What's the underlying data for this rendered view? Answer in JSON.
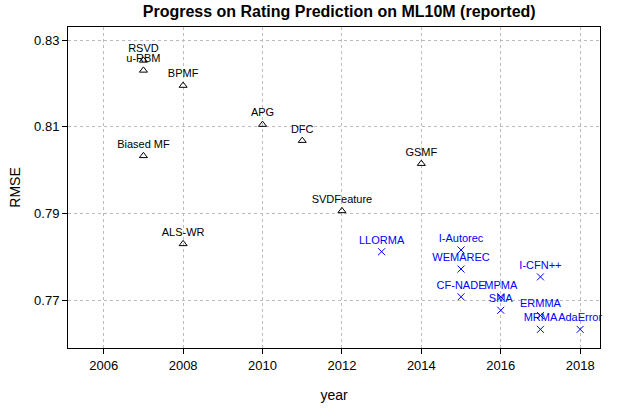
{
  "chart_data": {
    "type": "scatter",
    "title": "Progress on Rating Prediction on ML10M (reported)",
    "x_label": "year",
    "y_label": "RMSE",
    "xlim": [
      2005.1,
      2018.5
    ],
    "xticks": [
      2006,
      2008,
      2010,
      2012,
      2014,
      2016,
      2018
    ],
    "ylim": [
      0.759,
      0.833
    ],
    "yticks": [
      0.77,
      0.79,
      0.81,
      0.83
    ],
    "grid": true,
    "series": [
      {
        "color": "#000000",
        "marker": "triangle",
        "labels": [
          "RSVD",
          "u-RBM",
          "BPMF",
          "APG",
          "DFC",
          "Biased MF",
          "GSMF",
          "SVDFeature",
          "ALS-WR"
        ],
        "x": [
          2007,
          2007,
          2008,
          2010,
          2011,
          2007,
          2014,
          2012,
          2008
        ],
        "values": [
          0.8253,
          0.823,
          0.8195,
          0.8105,
          0.8068,
          0.8033,
          0.8015,
          0.7906,
          0.783
        ]
      },
      {
        "color": "#0000ff",
        "marker": "cross",
        "labels": [
          "LLORMA",
          "I-Autorec",
          "WEMAREC",
          "CF-NADE",
          "MPMA",
          "SMA",
          "I-CFN++",
          "ERMMA",
          "MRMA",
          "AdaError"
        ],
        "x": [
          2013,
          2015,
          2015,
          2015,
          2016,
          2016,
          2017,
          2017,
          2017,
          2018
        ],
        "values": [
          0.7812,
          0.7816,
          0.7772,
          0.7708,
          0.7708,
          0.7677,
          0.7754,
          0.7665,
          0.7633,
          0.7633
        ]
      }
    ]
  }
}
